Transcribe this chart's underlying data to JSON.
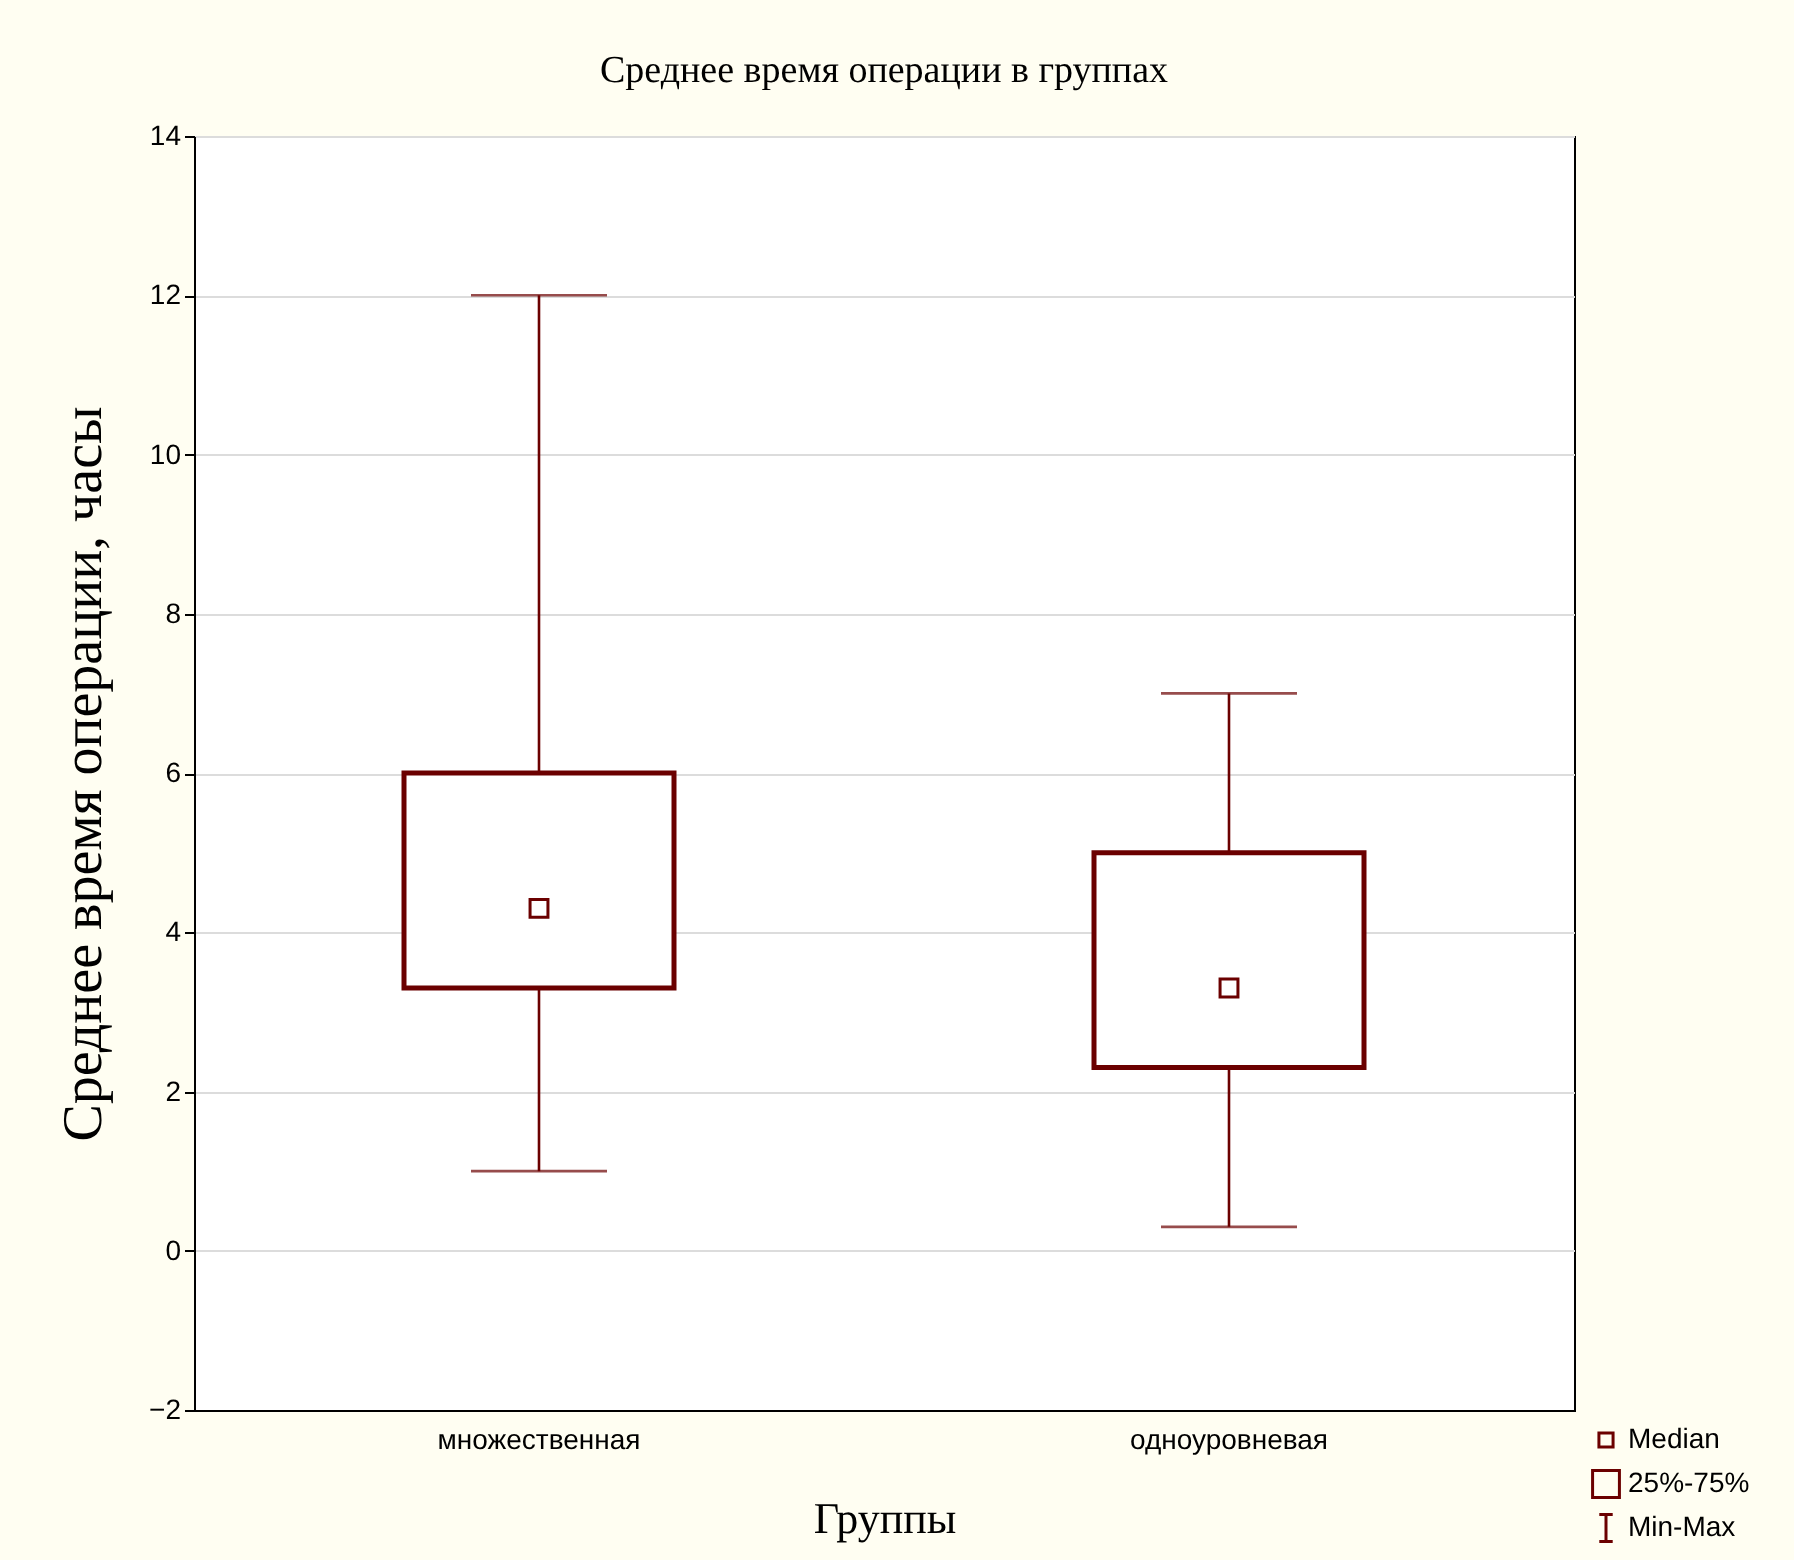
{
  "chart_data": {
    "type": "box",
    "title": "Среднее время операции в группах",
    "xlabel": "Группы",
    "ylabel": "Среднее время операции, часы",
    "categories": [
      "множественная",
      "одноуровневая"
    ],
    "series": [
      {
        "color": "#6b0000",
        "boxes": [
          {
            "low": 1,
            "q1": 3.3,
            "median": 4.3,
            "q3": 6,
            "high": 12
          },
          {
            "low": 0.3,
            "q1": 2.3,
            "median": 3.3,
            "q3": 5,
            "high": 7
          }
        ]
      }
    ],
    "ylim": [
      -2,
      14
    ],
    "yticks": [
      -2,
      0,
      2,
      4,
      6,
      8,
      10,
      12,
      14
    ],
    "grid": "y",
    "annotations": [
      "Median",
      "25%-75%",
      "Min-Max"
    ]
  }
}
